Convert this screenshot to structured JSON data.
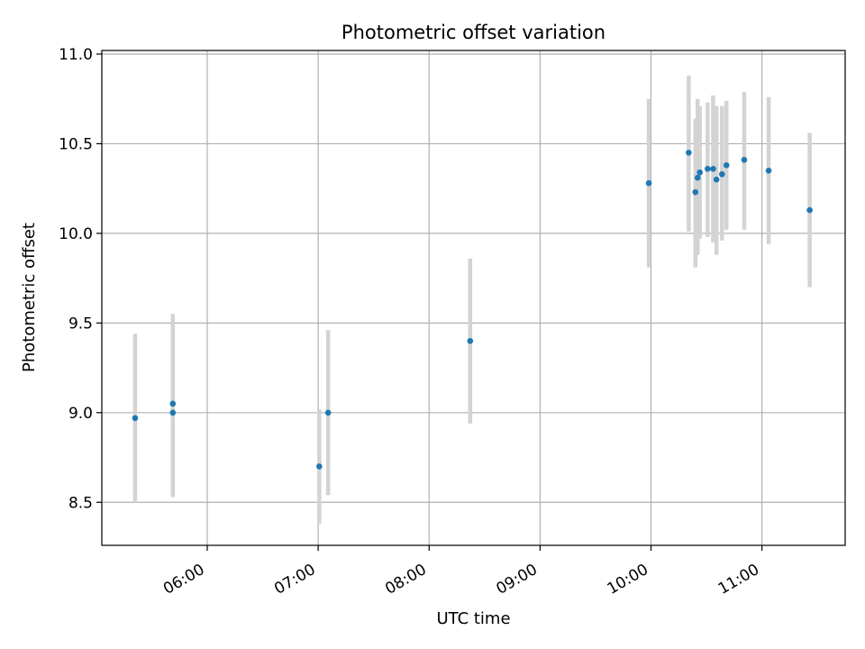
{
  "chart_data": {
    "type": "scatter",
    "title": "Photometric offset variation",
    "xlabel": "UTC time",
    "ylabel": "Photometric offset",
    "x_unit": "hours UTC",
    "xlim": [
      5.05,
      11.75
    ],
    "ylim": [
      8.26,
      11.02
    ],
    "xticks": [
      {
        "value": 6,
        "label": "06:00"
      },
      {
        "value": 7,
        "label": "07:00"
      },
      {
        "value": 8,
        "label": "08:00"
      },
      {
        "value": 9,
        "label": "09:00"
      },
      {
        "value": 10,
        "label": "10:00"
      },
      {
        "value": 11,
        "label": "11:00"
      }
    ],
    "yticks": [
      {
        "value": 8.5,
        "label": "8.5"
      },
      {
        "value": 9.0,
        "label": "9.0"
      },
      {
        "value": 9.5,
        "label": "9.5"
      },
      {
        "value": 10.0,
        "label": "10.0"
      },
      {
        "value": 10.5,
        "label": "10.5"
      },
      {
        "value": 11.0,
        "label": "11.0"
      }
    ],
    "grid": true,
    "point_color": "#1f77b4",
    "errorbar_color": "#d3d3d3",
    "points": [
      {
        "x": 5.35,
        "y": 8.97,
        "lo": 8.5,
        "hi": 9.44
      },
      {
        "x": 5.69,
        "y": 9.05,
        "lo": 8.53,
        "hi": 9.55
      },
      {
        "x": 5.69,
        "y": 9.0,
        "lo": 8.53,
        "hi": 9.55
      },
      {
        "x": 7.01,
        "y": 8.7,
        "lo": 8.38,
        "hi": 9.02
      },
      {
        "x": 7.09,
        "y": 9.0,
        "lo": 8.54,
        "hi": 9.46
      },
      {
        "x": 8.37,
        "y": 9.4,
        "lo": 8.94,
        "hi": 9.86
      },
      {
        "x": 9.98,
        "y": 10.28,
        "lo": 9.81,
        "hi": 10.75
      },
      {
        "x": 10.34,
        "y": 10.45,
        "lo": 10.01,
        "hi": 10.88
      },
      {
        "x": 10.4,
        "y": 10.23,
        "lo": 9.81,
        "hi": 10.64
      },
      {
        "x": 10.42,
        "y": 10.31,
        "lo": 9.88,
        "hi": 10.75
      },
      {
        "x": 10.44,
        "y": 10.34,
        "lo": 9.97,
        "hi": 10.71
      },
      {
        "x": 10.51,
        "y": 10.36,
        "lo": 9.98,
        "hi": 10.73
      },
      {
        "x": 10.56,
        "y": 10.36,
        "lo": 9.95,
        "hi": 10.77
      },
      {
        "x": 10.59,
        "y": 10.3,
        "lo": 9.88,
        "hi": 10.71
      },
      {
        "x": 10.64,
        "y": 10.33,
        "lo": 9.96,
        "hi": 10.71
      },
      {
        "x": 10.68,
        "y": 10.38,
        "lo": 10.02,
        "hi": 10.74
      },
      {
        "x": 10.84,
        "y": 10.41,
        "lo": 10.02,
        "hi": 10.79
      },
      {
        "x": 11.06,
        "y": 10.35,
        "lo": 9.94,
        "hi": 10.76
      },
      {
        "x": 11.43,
        "y": 10.13,
        "lo": 9.7,
        "hi": 10.56
      }
    ]
  }
}
